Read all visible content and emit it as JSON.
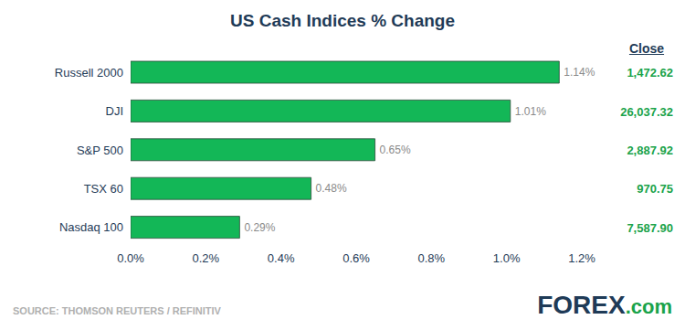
{
  "chart_data": {
    "type": "bar",
    "title": "US Cash Indices % Change",
    "orientation": "horizontal",
    "categories": [
      "Russell 2000",
      "DJI",
      "S&P 500",
      "TSX 60",
      "Nasdaq 100"
    ],
    "values": [
      1.14,
      1.01,
      0.65,
      0.48,
      0.29
    ],
    "value_labels": [
      "1.14%",
      "1.01%",
      "0.65%",
      "0.48%",
      "0.29%"
    ],
    "data_labels": true,
    "color": "#13b757",
    "xlim": [
      0,
      1.2
    ],
    "xticks": [
      {
        "value": 0,
        "label": "0.0%"
      },
      {
        "value": 0.2,
        "label": "0.2%"
      },
      {
        "value": 0.4,
        "label": "0.4%"
      },
      {
        "value": 0.6,
        "label": "0.6%"
      },
      {
        "value": 0.8,
        "label": "0.8%"
      },
      {
        "value": 1.0,
        "label": "1.0%"
      },
      {
        "value": 1.2,
        "label": "1.2%"
      }
    ],
    "grid": false,
    "close_title": "Close",
    "close": [
      "1,472.62",
      "26,037.32",
      "2,887.92",
      "970.75",
      "7,587.90"
    ],
    "source": "SOURCE: THOMSON REUTERS / REFINITIV",
    "logo": "FOREX.com"
  }
}
